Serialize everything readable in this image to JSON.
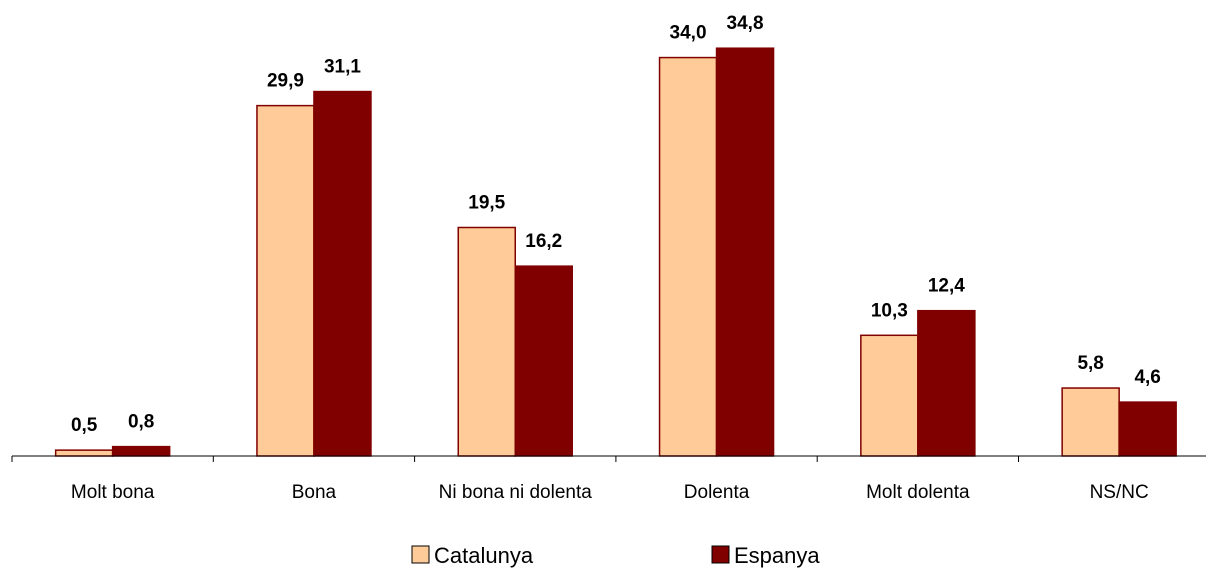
{
  "chart_data": {
    "type": "bar",
    "categories": [
      "Molt bona",
      "Bona",
      "Ni bona ni dolenta",
      "Dolenta",
      "Molt dolenta",
      "NS/NC"
    ],
    "series": [
      {
        "name": "Catalunya",
        "values": [
          0.5,
          29.9,
          19.5,
          34.0,
          10.3,
          5.8
        ],
        "labels": [
          "0,5",
          "29,9",
          "19,5",
          "34,0",
          "10,3",
          "5,8"
        ],
        "color": "#FFCC99"
      },
      {
        "name": "Espanya",
        "values": [
          0.8,
          31.1,
          16.2,
          34.8,
          12.4,
          4.6
        ],
        "labels": [
          "0,8",
          "31,1",
          "16,2",
          "34,8",
          "12,4",
          "4,6"
        ],
        "color": "#800000"
      }
    ],
    "ylim": [
      0,
      35.5
    ],
    "grid": false,
    "legend_position": "bottom"
  }
}
